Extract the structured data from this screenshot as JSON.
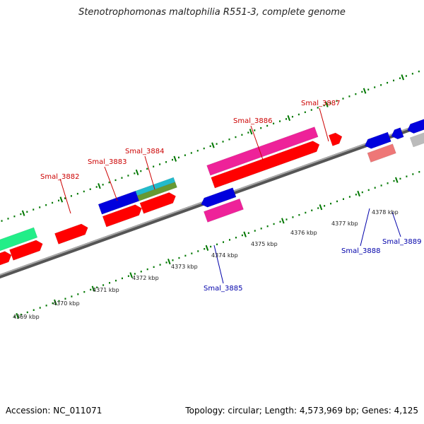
{
  "title": "Stenotrophomonas maltophilia R551-3, complete genome",
  "footer": {
    "accession": "Accession: NC_011071",
    "summary": "Topology: circular; Length: 4,573,969 bp; Genes: 4,125"
  },
  "scale_labels": [
    "4369 kbp",
    "4370 kbp",
    "4371 kbp",
    "4372 kbp",
    "4373 kbp",
    "4374 kbp",
    "4375 kbp",
    "4376 kbp",
    "4377 kbp",
    "4378 kbp"
  ],
  "gene_labels": {
    "top": [
      "Smal_3882",
      "Smal_3883",
      "Smal_3884",
      "Smal_3886",
      "Smal_3887"
    ],
    "bottom": [
      "Smal_3885",
      "Smal_3888",
      "Smal_3889"
    ]
  },
  "colors": {
    "red": "#ff0000",
    "blue": "#0000dd",
    "magenta": "#ee2299",
    "cyan": "#22bbcc",
    "olive": "#669933",
    "green": "#22ee88",
    "salmon": "#ee7777",
    "gray": "#bbbbbb",
    "label_red": "#cc0000",
    "label_blue": "#0000aa",
    "tick_green": "#007700"
  }
}
